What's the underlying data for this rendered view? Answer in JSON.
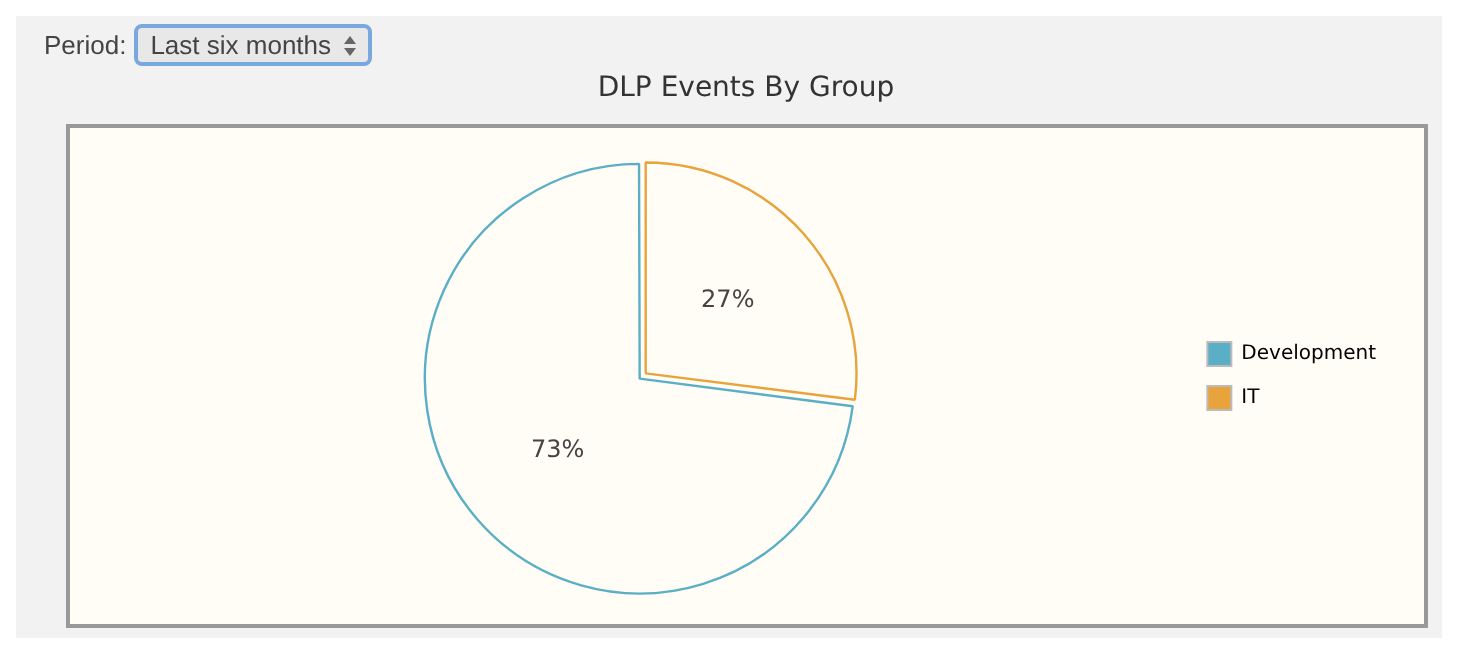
{
  "chart_data": {
    "type": "pie",
    "title": "DLP Events By Group",
    "annotations": [
      "Period:",
      "Last six months"
    ],
    "categories": [
      "Development",
      "IT"
    ],
    "values": [
      73,
      27
    ],
    "colors": [
      "#5aafc6",
      "#e8a33d"
    ],
    "value_labels": [
      "73%",
      "27%"
    ],
    "legend": "right"
  }
}
